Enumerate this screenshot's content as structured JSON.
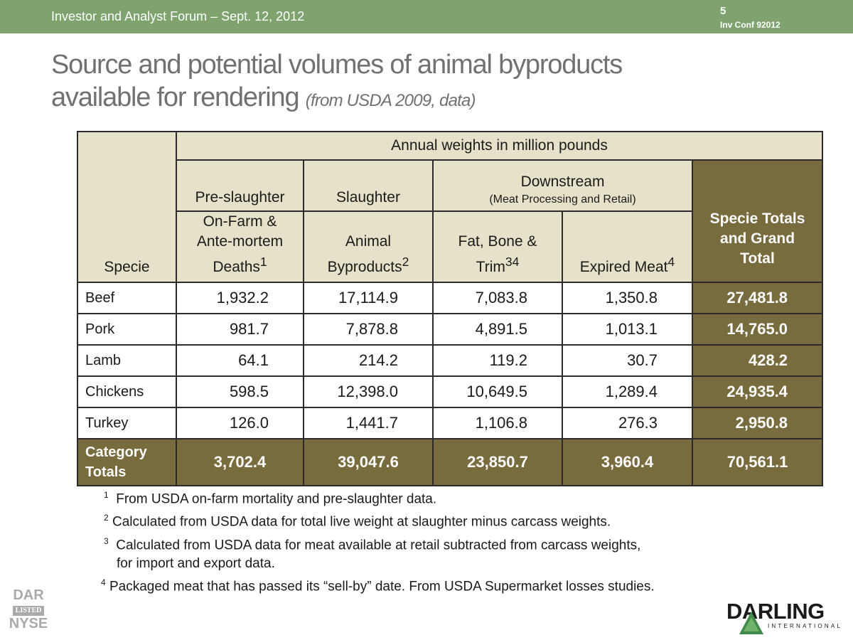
{
  "header": {
    "conference": "Investor and Analyst Forum – Sept. 12, 2012",
    "page_number": "5",
    "code": "Inv Conf 92012"
  },
  "title": {
    "main_line1": "Source and potential volumes of animal byproducts",
    "main_line2": "available for rendering",
    "subtitle": "(from USDA 2009, data)"
  },
  "table": {
    "specie_header": "Specie",
    "annual_header": "Annual weights in million pounds",
    "pre_slaughter": "Pre-slaughter",
    "slaughter": "Slaughter",
    "downstream": "Downstream",
    "downstream_sub": "(Meat Processing and Retail)",
    "col_onfarm_l1": "On-Farm &",
    "col_onfarm_l2": "Ante-mortem",
    "col_onfarm_l3": "Deaths",
    "col_onfarm_sup": "1",
    "col_animal_l1": "Animal",
    "col_animal_l2": "Byproducts",
    "col_animal_sup": "2",
    "col_fat_l1": "Fat, Bone &",
    "col_fat_l2": "Trim",
    "col_fat_sup": "34",
    "col_expired": "Expired Meat",
    "col_expired_sup": "4",
    "totals_l1": "Specie Totals",
    "totals_l2": "and Grand",
    "totals_l3": "Total",
    "rows": [
      {
        "specie": "Beef",
        "onfarm": "1,932.2",
        "animal": "17,114.9",
        "fat": "7,083.8",
        "expired": "1,350.8",
        "total": "27,481.8"
      },
      {
        "specie": "Pork",
        "onfarm": "981.7",
        "animal": "7,878.8",
        "fat": "4,891.5",
        "expired": "1,013.1",
        "total": "14,765.0"
      },
      {
        "specie": "Lamb",
        "onfarm": "64.1",
        "animal": "214.2",
        "fat": "119.2",
        "expired": "30.7",
        "total": "428.2"
      },
      {
        "specie": "Chickens",
        "onfarm": "598.5",
        "animal": "12,398.0",
        "fat": "10,649.5",
        "expired": "1,289.4",
        "total": "24,935.4"
      },
      {
        "specie": "Turkey",
        "onfarm": "126.0",
        "animal": "1,441.7",
        "fat": "1,106.8",
        "expired": "276.3",
        "total": "2,950.8"
      }
    ],
    "category_totals": {
      "label_l1": "Category",
      "label_l2": "Totals",
      "onfarm": "3,702.4",
      "animal": "39,047.6",
      "fat": "23,850.7",
      "expired": "3,960.4",
      "total": "70,561.1"
    }
  },
  "footnotes": [
    {
      "num": "1",
      "text": "From USDA on-farm mortality and pre-slaughter data."
    },
    {
      "num": "2",
      "text": "Calculated from USDA data for total live weight at slaughter minus carcass weights."
    },
    {
      "num": "3",
      "text": "Calculated from USDA data for meat available at retail subtracted from carcass weights,",
      "text2": "for import and export data."
    },
    {
      "num": "4",
      "text": "Packaged meat that has passed its “sell-by” date.  From USDA Supermarket losses studies."
    }
  ],
  "ticker": {
    "symbol": "DAR",
    "listed": "LISTED",
    "exchange": "NYSE"
  },
  "logo": {
    "word": "DARLING",
    "sub": "INTERNATIONAL"
  },
  "colors": {
    "topbar": "#7fa36f",
    "header_cell": "#e6e2c9",
    "totals_cell": "#786b3d",
    "title_text": "#727171",
    "logo_triangle": "#3f8a4a"
  }
}
